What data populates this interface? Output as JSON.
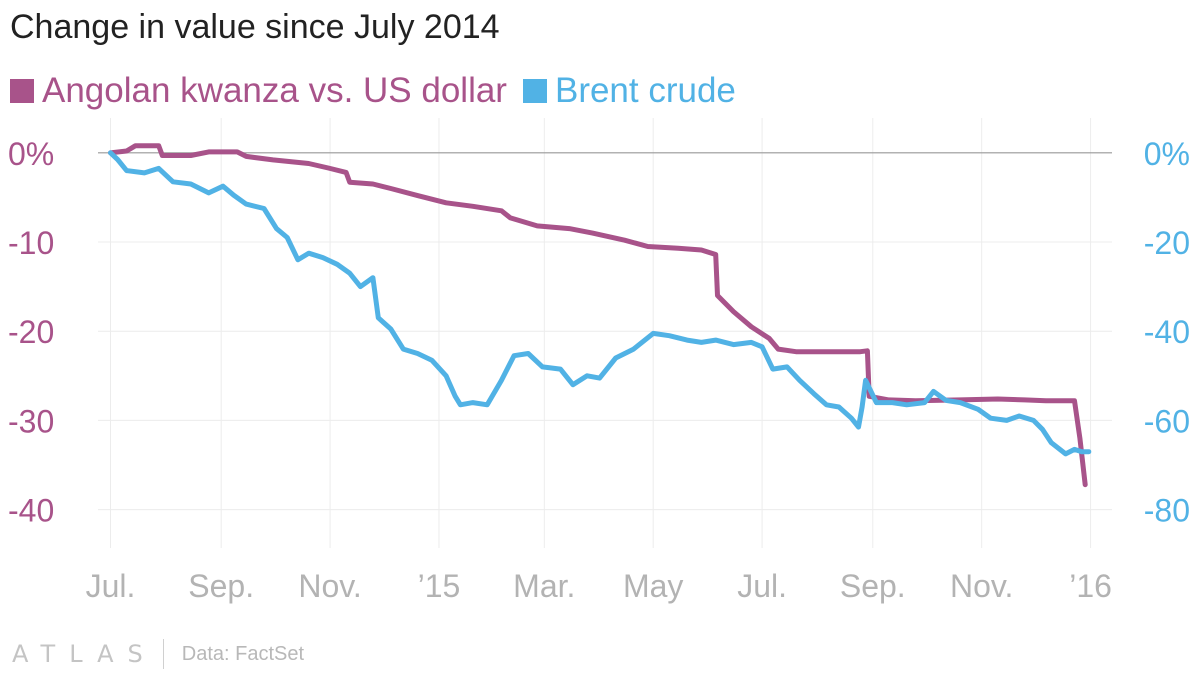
{
  "chart_data": {
    "type": "line",
    "title": "Change in value since July 2014",
    "x_tick_labels": [
      "Jul.",
      "Sep.",
      "Nov.",
      "’15",
      "Mar.",
      "May",
      "Jul.",
      "Sep.",
      "Nov.",
      "’16"
    ],
    "x_ticks": [
      "2014-07-01",
      "2014-09-01",
      "2014-11-01",
      "2015-01-01",
      "2015-03-01",
      "2015-05-01",
      "2015-07-01",
      "2015-09-01",
      "2015-11-01",
      "2016-01-01"
    ],
    "y_left": {
      "ticks": [
        0,
        -10,
        -20,
        -30,
        -40
      ],
      "tick_labels": [
        "0%",
        "-10",
        "-20",
        "-30",
        "-40"
      ],
      "ylim": [
        -44.3,
        3.9
      ]
    },
    "y_right": {
      "ticks": [
        0,
        -20,
        -40,
        -60,
        -80
      ],
      "tick_labels": [
        "0%",
        "-20",
        "-40",
        "-60",
        "-80"
      ],
      "ylim": [
        -88.6,
        7.8
      ]
    },
    "grid": true,
    "legend_position": "top-left",
    "series": [
      {
        "name": "Angolan kwanza vs. US dollar",
        "color": "#a8538a",
        "axis": "left",
        "points": [
          [
            "2014-07-01",
            0
          ],
          [
            "2014-07-10",
            0.2
          ],
          [
            "2014-07-15",
            0.8
          ],
          [
            "2014-07-28",
            0.8
          ],
          [
            "2014-07-30",
            -0.3
          ],
          [
            "2014-08-15",
            -0.3
          ],
          [
            "2014-08-25",
            0.1
          ],
          [
            "2014-09-10",
            0.1
          ],
          [
            "2014-09-15",
            -0.4
          ],
          [
            "2014-09-30",
            -0.8
          ],
          [
            "2014-10-20",
            -1.2
          ],
          [
            "2014-10-31",
            -1.7
          ],
          [
            "2014-11-10",
            -2.2
          ],
          [
            "2014-11-12",
            -3.3
          ],
          [
            "2014-11-25",
            -3.5
          ],
          [
            "2014-12-05",
            -4.0
          ],
          [
            "2014-12-20",
            -4.8
          ],
          [
            "2015-01-05",
            -5.6
          ],
          [
            "2015-01-20",
            -6.0
          ],
          [
            "2015-02-05",
            -6.5
          ],
          [
            "2015-02-10",
            -7.3
          ],
          [
            "2015-02-25",
            -8.2
          ],
          [
            "2015-03-15",
            -8.5
          ],
          [
            "2015-03-28",
            -9.0
          ],
          [
            "2015-04-15",
            -9.8
          ],
          [
            "2015-04-28",
            -10.5
          ],
          [
            "2015-05-15",
            -10.7
          ],
          [
            "2015-05-28",
            -10.9
          ],
          [
            "2015-06-05",
            -11.4
          ],
          [
            "2015-06-06",
            -16.0
          ],
          [
            "2015-06-15",
            -17.8
          ],
          [
            "2015-06-25",
            -19.5
          ],
          [
            "2015-07-05",
            -20.8
          ],
          [
            "2015-07-10",
            -22.0
          ],
          [
            "2015-07-20",
            -22.3
          ],
          [
            "2015-08-25",
            -22.3
          ],
          [
            "2015-08-29",
            -22.2
          ],
          [
            "2015-08-30",
            -27.3
          ],
          [
            "2015-09-10",
            -27.7
          ],
          [
            "2015-09-25",
            -27.8
          ],
          [
            "2015-10-20",
            -27.7
          ],
          [
            "2015-11-10",
            -27.6
          ],
          [
            "2015-11-25",
            -27.7
          ],
          [
            "2015-12-07",
            -27.8
          ],
          [
            "2015-12-23",
            -27.8
          ],
          [
            "2015-12-26",
            -32.0
          ],
          [
            "2015-12-29",
            -37.2
          ]
        ]
      },
      {
        "name": "Brent crude",
        "color": "#51b2e5",
        "axis": "right",
        "points": [
          [
            "2014-07-01",
            0
          ],
          [
            "2014-07-05",
            -1.5
          ],
          [
            "2014-07-10",
            -4.0
          ],
          [
            "2014-07-20",
            -4.5
          ],
          [
            "2014-07-28",
            -3.5
          ],
          [
            "2014-08-05",
            -6.5
          ],
          [
            "2014-08-15",
            -7.0
          ],
          [
            "2014-08-25",
            -9.0
          ],
          [
            "2014-09-02",
            -7.5
          ],
          [
            "2014-09-08",
            -9.5
          ],
          [
            "2014-09-15",
            -11.5
          ],
          [
            "2014-09-25",
            -12.5
          ],
          [
            "2014-10-02",
            -17.0
          ],
          [
            "2014-10-08",
            -19.0
          ],
          [
            "2014-10-14",
            -24.0
          ],
          [
            "2014-10-20",
            -22.5
          ],
          [
            "2014-10-28",
            -23.5
          ],
          [
            "2014-11-05",
            -25.0
          ],
          [
            "2014-11-12",
            -27.0
          ],
          [
            "2014-11-18",
            -30.0
          ],
          [
            "2014-11-25",
            -28.0
          ],
          [
            "2014-11-28",
            -37.0
          ],
          [
            "2014-12-05",
            -39.5
          ],
          [
            "2014-12-12",
            -44.0
          ],
          [
            "2014-12-20",
            -45.0
          ],
          [
            "2014-12-28",
            -46.5
          ],
          [
            "2015-01-05",
            -50.0
          ],
          [
            "2015-01-10",
            -54.5
          ],
          [
            "2015-01-13",
            -56.5
          ],
          [
            "2015-01-20",
            -56.0
          ],
          [
            "2015-01-28",
            -56.5
          ],
          [
            "2015-02-05",
            -51.0
          ],
          [
            "2015-02-12",
            -45.5
          ],
          [
            "2015-02-20",
            -45.0
          ],
          [
            "2015-02-28",
            -48.0
          ],
          [
            "2015-03-10",
            -48.5
          ],
          [
            "2015-03-17",
            -52.0
          ],
          [
            "2015-03-25",
            -50.0
          ],
          [
            "2015-04-01",
            -50.5
          ],
          [
            "2015-04-10",
            -46.0
          ],
          [
            "2015-04-20",
            -44.0
          ],
          [
            "2015-05-01",
            -40.5
          ],
          [
            "2015-05-10",
            -41.0
          ],
          [
            "2015-05-20",
            -42.0
          ],
          [
            "2015-05-28",
            -42.5
          ],
          [
            "2015-06-05",
            -42.0
          ],
          [
            "2015-06-15",
            -43.0
          ],
          [
            "2015-06-25",
            -42.5
          ],
          [
            "2015-07-01",
            -43.5
          ],
          [
            "2015-07-07",
            -48.5
          ],
          [
            "2015-07-15",
            -48.0
          ],
          [
            "2015-07-22",
            -51.0
          ],
          [
            "2015-07-30",
            -54.0
          ],
          [
            "2015-08-06",
            -56.5
          ],
          [
            "2015-08-13",
            -57.0
          ],
          [
            "2015-08-20",
            -59.5
          ],
          [
            "2015-08-24",
            -61.5
          ],
          [
            "2015-08-26",
            -57.0
          ],
          [
            "2015-08-28",
            -51.0
          ],
          [
            "2015-09-03",
            -56.0
          ],
          [
            "2015-09-12",
            -56.0
          ],
          [
            "2015-09-20",
            -56.5
          ],
          [
            "2015-09-30",
            -56.0
          ],
          [
            "2015-10-05",
            -53.5
          ],
          [
            "2015-10-12",
            -55.5
          ],
          [
            "2015-10-20",
            -56.0
          ],
          [
            "2015-10-30",
            -57.5
          ],
          [
            "2015-11-06",
            -59.5
          ],
          [
            "2015-11-15",
            -60.0
          ],
          [
            "2015-11-22",
            -59.0
          ],
          [
            "2015-11-30",
            -60.0
          ],
          [
            "2015-12-05",
            -62.0
          ],
          [
            "2015-12-10",
            -65.0
          ],
          [
            "2015-12-18",
            -67.5
          ],
          [
            "2015-12-23",
            -66.5
          ],
          [
            "2015-12-27",
            -67.0
          ],
          [
            "2015-12-31",
            -67.0
          ]
        ]
      }
    ]
  },
  "footer": {
    "logo_text": "ATLAS",
    "source": "Data: FactSet"
  }
}
